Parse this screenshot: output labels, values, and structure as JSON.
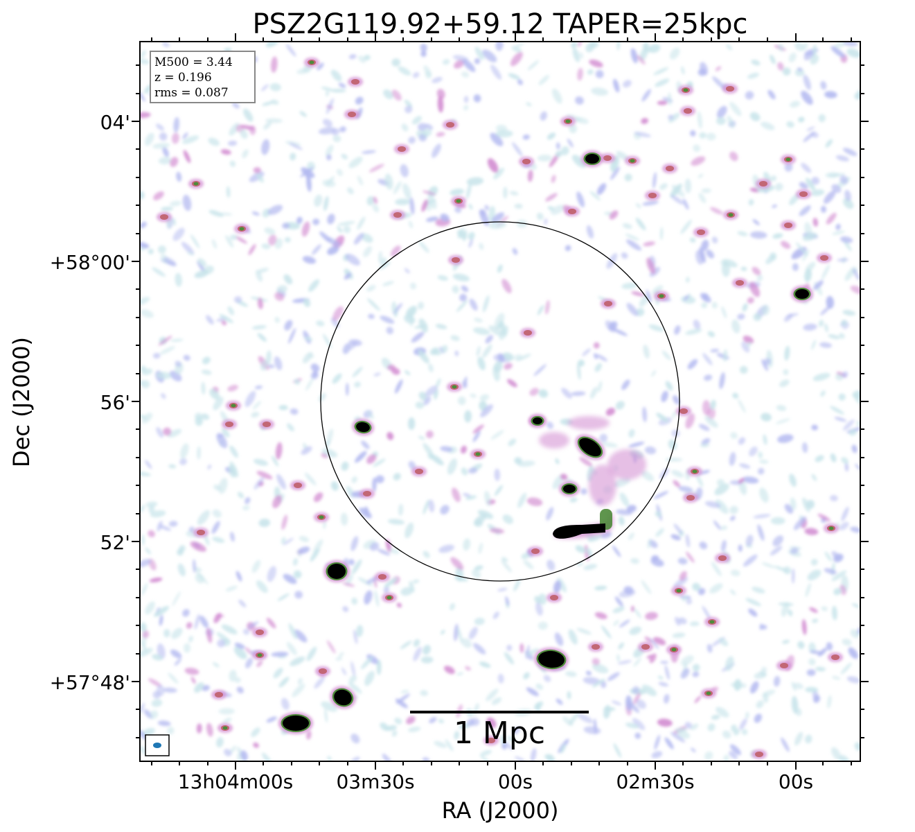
{
  "title": "PSZ2G119.92+59.12 TAPER=25kpc",
  "info_box": {
    "line1": "M500 = 3.44",
    "line2": "z = 0.196",
    "line3": "rms = 0.087"
  },
  "axes": {
    "x_label": "RA (J2000)",
    "y_label": "Dec (J2000)",
    "x_ticks": [
      "13h04m00s",
      "03m30s",
      "00s",
      "02m30s",
      "00s"
    ],
    "y_ticks": [
      "04'",
      "+58°00'",
      "56'",
      "52'",
      "+57°48'"
    ]
  },
  "scalebar": {
    "label": "1 Mpc"
  },
  "colors": {
    "noise_light": "#c7e4ea",
    "noise_blue": "#b2b8f0",
    "noise_pink": "#d18ad0",
    "noise_red": "#c0606a",
    "source_core": "#000000",
    "source_green": "#4e8a3a",
    "beam": "#1f77b4"
  }
}
